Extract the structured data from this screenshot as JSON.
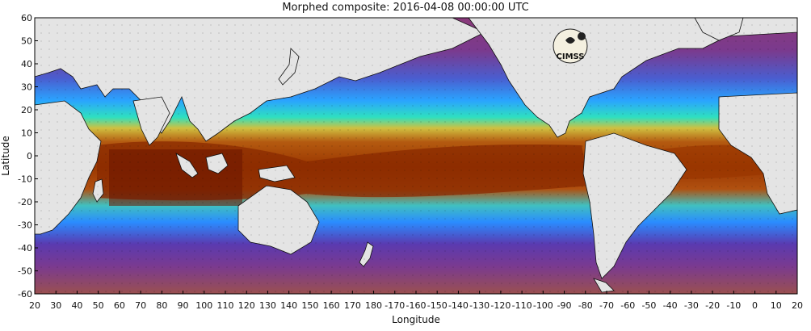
{
  "title": "Morphed composite: 2016-04-08 00:00:00 UTC",
  "x_axis": {
    "label": "Longitude",
    "ticks": [
      "20",
      "30",
      "40",
      "50",
      "60",
      "70",
      "80",
      "90",
      "100",
      "110",
      "120",
      "130",
      "140",
      "150",
      "160",
      "170",
      "180",
      "-170",
      "-160",
      "-150",
      "-140",
      "-130",
      "-120",
      "-110",
      "-100",
      "-90",
      "-80",
      "-70",
      "-60",
      "-50",
      "-40",
      "-30",
      "-20",
      "-10",
      "0",
      "10",
      "20"
    ]
  },
  "y_axis": {
    "label": "Latitude",
    "ticks": [
      "60",
      "50",
      "40",
      "30",
      "20",
      "10",
      "0",
      "-10",
      "-20",
      "-30",
      "-40",
      "-50",
      "-60"
    ]
  },
  "logo": {
    "text": "CIMSS"
  },
  "colors": {
    "land": "#e4e4e4",
    "coast": "#111111",
    "low_moisture": "#6a2a8a",
    "mid_moisture": "#1f88ff",
    "high_moisture": "#a34100",
    "max_moisture": "#7a1a00"
  }
}
